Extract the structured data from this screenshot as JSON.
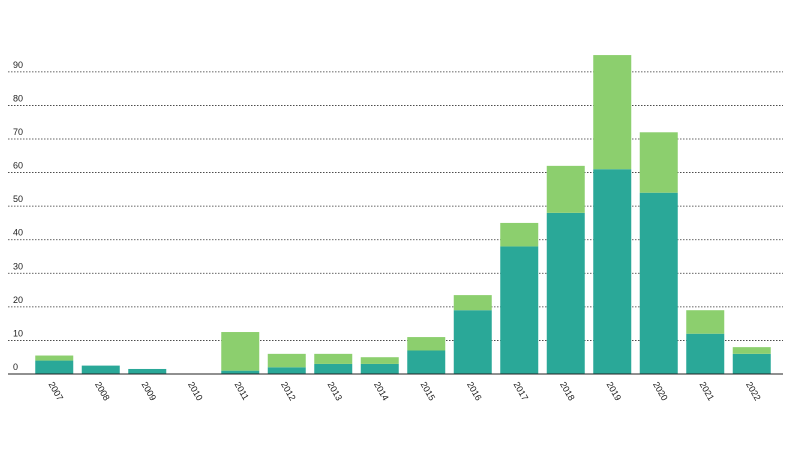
{
  "chart_data": {
    "type": "bar",
    "stacked": true,
    "categories": [
      "2007",
      "2008",
      "2009",
      "2010",
      "2011",
      "2012",
      "2013",
      "2014",
      "2015",
      "2016",
      "2017",
      "2018",
      "2019",
      "2020",
      "2021",
      "2022"
    ],
    "series": [
      {
        "color": "#2aa898",
        "values": [
          4,
          2.5,
          1.5,
          0,
          1,
          2,
          3,
          3,
          7,
          19,
          38,
          48,
          61,
          54,
          12,
          6
        ]
      },
      {
        "color": "#8ccf6e",
        "values": [
          1.5,
          0,
          0,
          0,
          11.5,
          4,
          3,
          2,
          4,
          4.5,
          7,
          14,
          34,
          18,
          7,
          2
        ]
      }
    ],
    "ylim": [
      0,
      98
    ],
    "yticks": [
      0,
      10,
      20,
      30,
      40,
      50,
      60,
      70,
      80,
      90
    ],
    "grid": true
  }
}
